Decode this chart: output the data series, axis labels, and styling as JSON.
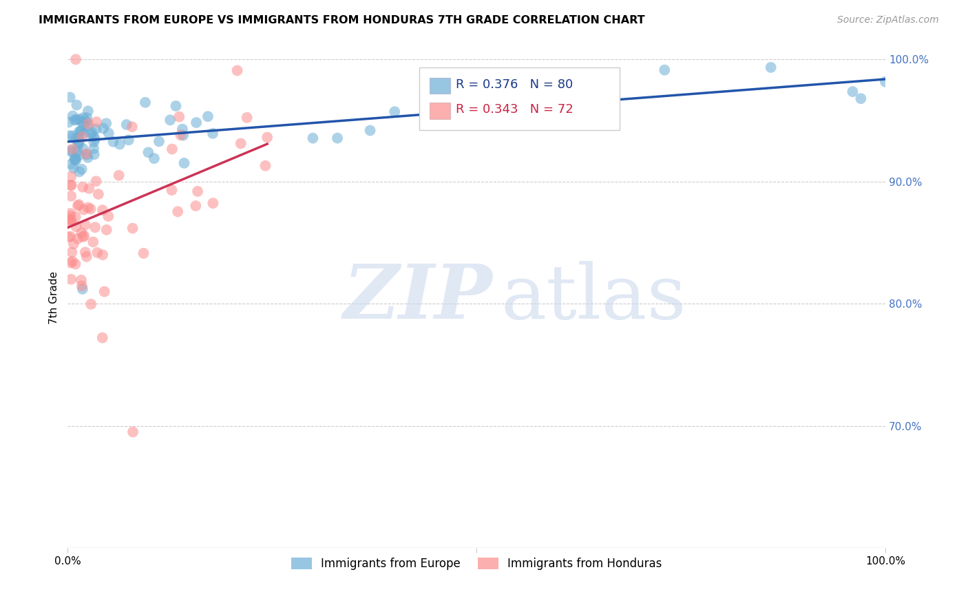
{
  "title": "IMMIGRANTS FROM EUROPE VS IMMIGRANTS FROM HONDURAS 7TH GRADE CORRELATION CHART",
  "source": "Source: ZipAtlas.com",
  "ylabel": "7th Grade",
  "xlim": [
    0.0,
    1.0
  ],
  "ylim": [
    0.6,
    1.01
  ],
  "yticks": [
    0.7,
    0.8,
    0.9,
    1.0
  ],
  "ytick_labels": [
    "70.0%",
    "80.0%",
    "90.0%",
    "100.0%"
  ],
  "europe_color": "#6baed6",
  "honduras_color": "#fc8d8d",
  "europe_R": 0.376,
  "europe_N": 80,
  "honduras_R": 0.343,
  "honduras_N": 72,
  "europe_line_color": "#2255aa",
  "honduras_line_color": "#cc3355",
  "legend_europe": "Immigrants from Europe",
  "legend_honduras": "Immigrants from Honduras"
}
